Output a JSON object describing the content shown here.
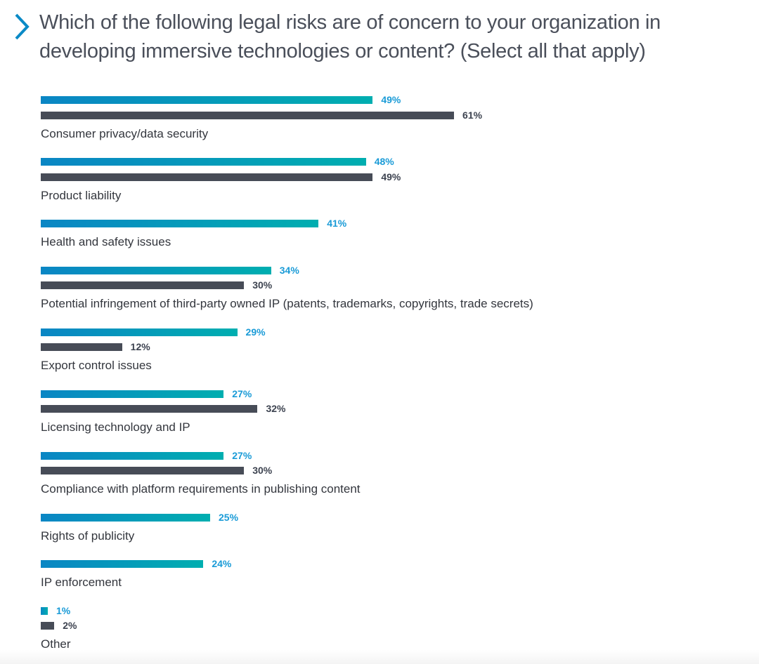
{
  "chart_data": {
    "type": "bar",
    "orientation": "horizontal",
    "title": "Which of the following legal risks are of concern to your organization in developing immersive technologies or content? (Select all that apply)",
    "categories": [
      "Consumer privacy/data security",
      "Product liability",
      "Health and safety issues",
      "Potential infringement of third-party owned IP (patents, trademarks, copyrights, trade secrets)",
      "Export control issues",
      "Licensing technology and IP",
      "Compliance with platform requirements in publishing content",
      "Rights of publicity",
      "IP enforcement",
      "Other"
    ],
    "series": [
      {
        "values": [
          49,
          48,
          41,
          34,
          29,
          27,
          27,
          25,
          24,
          1
        ],
        "color": "#0a86c4"
      },
      {
        "values": [
          61,
          49,
          null,
          30,
          12,
          32,
          30,
          null,
          null,
          2
        ],
        "color": "#474c57"
      }
    ],
    "unit": "%",
    "grid": false,
    "xlim": [
      0,
      100
    ]
  }
}
